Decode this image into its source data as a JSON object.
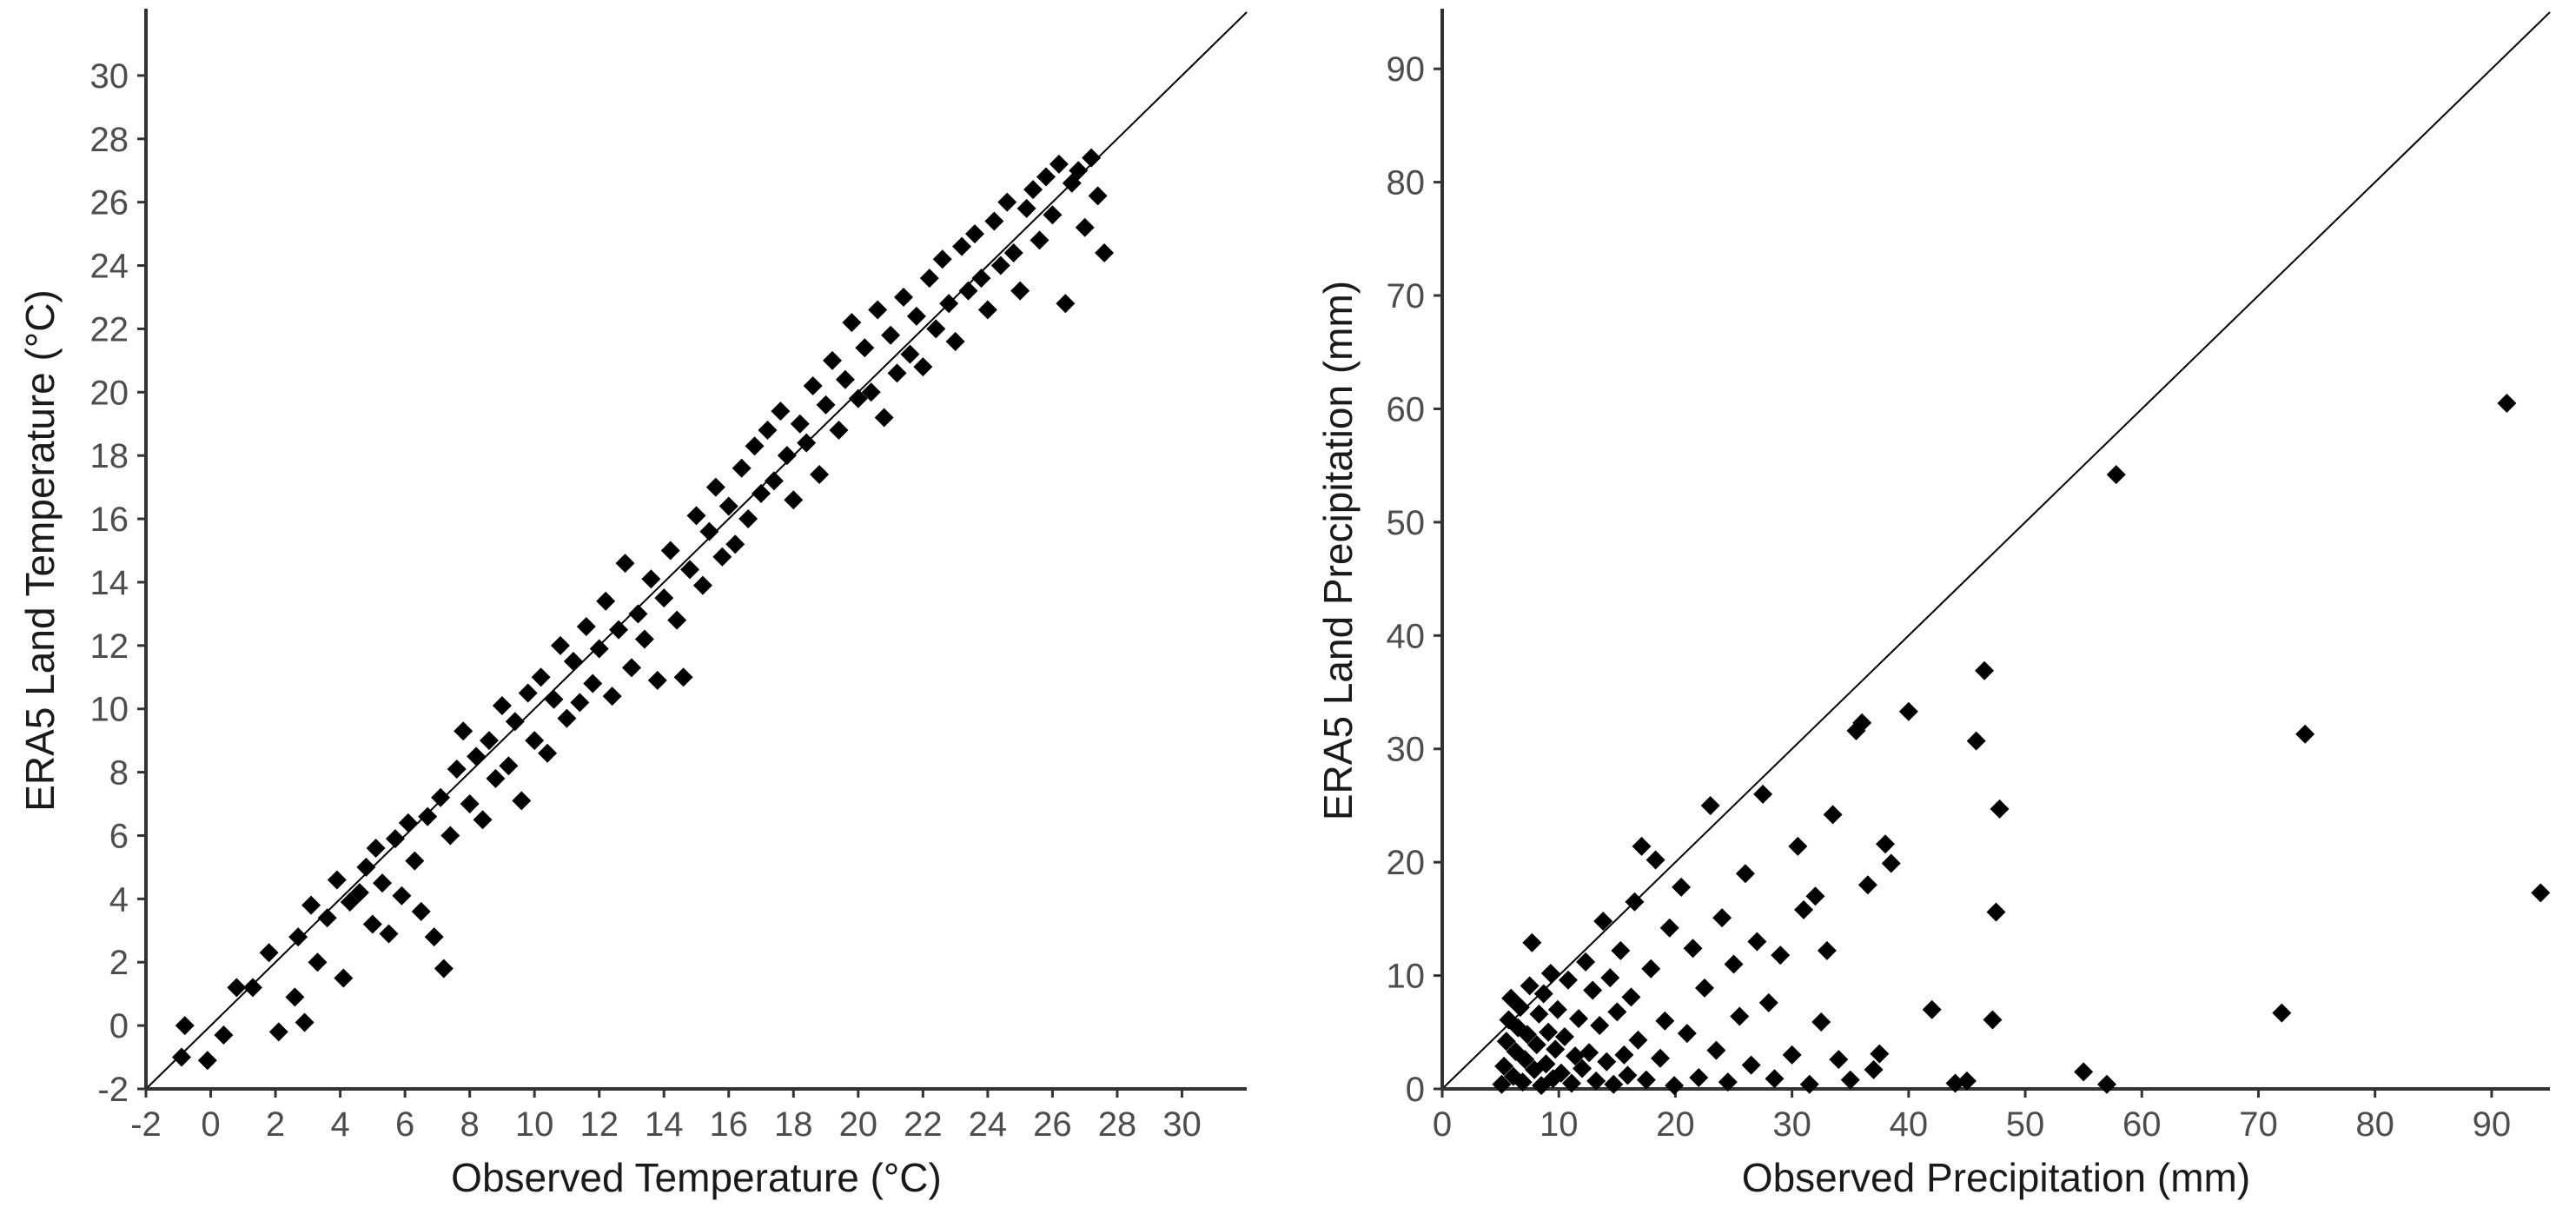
{
  "figure": {
    "colors": {
      "points": "#000000",
      "axis": "#333333",
      "identity_line": "#000000",
      "tick_text": "#4d4d4d",
      "background": "#ffffff"
    }
  },
  "chart_data": [
    {
      "type": "scatter",
      "title": "",
      "xlabel": "Observed Temperature (°C)",
      "ylabel": "ERA5 Land Temperature (°C)",
      "xlim": [
        -2,
        32
      ],
      "ylim": [
        -2,
        32
      ],
      "x_ticks": [
        -2,
        0,
        2,
        4,
        6,
        8,
        10,
        12,
        14,
        16,
        18,
        20,
        22,
        24,
        26,
        28,
        30
      ],
      "y_ticks": [
        -2,
        0,
        2,
        4,
        6,
        8,
        10,
        12,
        14,
        16,
        18,
        20,
        22,
        24,
        26,
        28,
        30
      ],
      "x_tick_labels": [
        "-2",
        "0",
        "2",
        "4",
        "6",
        "8",
        "10",
        "12",
        "14",
        "16",
        "18",
        "20",
        "22",
        "24",
        "26",
        "28",
        "30"
      ],
      "y_tick_labels": [
        "-2",
        "0",
        "2",
        "4",
        "6",
        "8",
        "10",
        "12",
        "14",
        "16",
        "18",
        "20",
        "22",
        "24",
        "26",
        "28",
        "30"
      ],
      "grid": false,
      "reference_line": "1:1",
      "marker": "diamond",
      "points": [
        [
          -0.8,
          0.0
        ],
        [
          -0.9,
          -1.0
        ],
        [
          -0.1,
          -1.1
        ],
        [
          0.4,
          -0.3
        ],
        [
          0.8,
          1.2
        ],
        [
          1.3,
          1.2
        ],
        [
          1.8,
          2.3
        ],
        [
          2.1,
          -0.2
        ],
        [
          2.6,
          0.9
        ],
        [
          2.9,
          0.1
        ],
        [
          2.7,
          2.8
        ],
        [
          3.1,
          3.8
        ],
        [
          3.3,
          2.0
        ],
        [
          3.6,
          3.4
        ],
        [
          3.9,
          4.6
        ],
        [
          4.1,
          1.5
        ],
        [
          4.3,
          3.9
        ],
        [
          4.6,
          4.2
        ],
        [
          4.8,
          5.0
        ],
        [
          5.0,
          3.2
        ],
        [
          5.1,
          5.6
        ],
        [
          5.3,
          4.5
        ],
        [
          5.5,
          2.9
        ],
        [
          5.7,
          5.9
        ],
        [
          5.9,
          4.1
        ],
        [
          6.1,
          6.4
        ],
        [
          6.3,
          5.2
        ],
        [
          6.5,
          3.6
        ],
        [
          6.7,
          6.6
        ],
        [
          6.9,
          2.8
        ],
        [
          7.1,
          7.2
        ],
        [
          7.2,
          1.8
        ],
        [
          7.4,
          6.0
        ],
        [
          7.6,
          8.1
        ],
        [
          7.8,
          9.3
        ],
        [
          8.0,
          7.0
        ],
        [
          8.2,
          8.5
        ],
        [
          8.4,
          6.5
        ],
        [
          8.6,
          9.0
        ],
        [
          8.8,
          7.8
        ],
        [
          9.0,
          10.1
        ],
        [
          9.2,
          8.2
        ],
        [
          9.4,
          9.6
        ],
        [
          9.6,
          7.1
        ],
        [
          9.8,
          10.5
        ],
        [
          10.0,
          9.0
        ],
        [
          10.2,
          11.0
        ],
        [
          10.4,
          8.6
        ],
        [
          10.6,
          10.3
        ],
        [
          10.8,
          12.0
        ],
        [
          11.0,
          9.7
        ],
        [
          11.2,
          11.5
        ],
        [
          11.4,
          10.2
        ],
        [
          11.6,
          12.6
        ],
        [
          11.8,
          10.8
        ],
        [
          12.0,
          11.9
        ],
        [
          12.2,
          13.4
        ],
        [
          12.4,
          10.4
        ],
        [
          12.6,
          12.5
        ],
        [
          12.8,
          14.6
        ],
        [
          13.0,
          11.3
        ],
        [
          13.2,
          13.0
        ],
        [
          13.4,
          12.2
        ],
        [
          13.6,
          14.1
        ],
        [
          13.8,
          10.9
        ],
        [
          14.0,
          13.5
        ],
        [
          14.2,
          15.0
        ],
        [
          14.4,
          12.8
        ],
        [
          14.6,
          11.0
        ],
        [
          14.8,
          14.4
        ],
        [
          15.0,
          16.1
        ],
        [
          15.2,
          13.9
        ],
        [
          15.4,
          15.6
        ],
        [
          15.6,
          17.0
        ],
        [
          15.8,
          14.8
        ],
        [
          16.0,
          16.4
        ],
        [
          16.2,
          15.2
        ],
        [
          16.4,
          17.6
        ],
        [
          16.6,
          16.0
        ],
        [
          16.8,
          18.3
        ],
        [
          17.0,
          16.8
        ],
        [
          17.2,
          18.8
        ],
        [
          17.4,
          17.2
        ],
        [
          17.6,
          19.4
        ],
        [
          17.8,
          18.0
        ],
        [
          18.0,
          16.6
        ],
        [
          18.2,
          19.0
        ],
        [
          18.4,
          18.4
        ],
        [
          18.6,
          20.2
        ],
        [
          18.8,
          17.4
        ],
        [
          19.0,
          19.6
        ],
        [
          19.2,
          21.0
        ],
        [
          19.4,
          18.8
        ],
        [
          19.6,
          20.4
        ],
        [
          19.8,
          22.2
        ],
        [
          20.0,
          19.8
        ],
        [
          20.2,
          21.4
        ],
        [
          20.4,
          20.0
        ],
        [
          20.6,
          22.6
        ],
        [
          20.8,
          19.2
        ],
        [
          21.0,
          21.8
        ],
        [
          21.2,
          20.6
        ],
        [
          21.4,
          23.0
        ],
        [
          21.6,
          21.2
        ],
        [
          21.8,
          22.4
        ],
        [
          22.0,
          20.8
        ],
        [
          22.2,
          23.6
        ],
        [
          22.4,
          22.0
        ],
        [
          22.6,
          24.2
        ],
        [
          22.8,
          22.8
        ],
        [
          23.0,
          21.6
        ],
        [
          23.2,
          24.6
        ],
        [
          23.4,
          23.2
        ],
        [
          23.6,
          25.0
        ],
        [
          23.8,
          23.6
        ],
        [
          24.0,
          22.6
        ],
        [
          24.2,
          25.4
        ],
        [
          24.4,
          24.0
        ],
        [
          24.6,
          26.0
        ],
        [
          24.8,
          24.4
        ],
        [
          25.0,
          23.2
        ],
        [
          25.2,
          25.8
        ],
        [
          25.4,
          26.4
        ],
        [
          25.6,
          24.8
        ],
        [
          25.8,
          26.8
        ],
        [
          26.0,
          25.6
        ],
        [
          26.2,
          27.2
        ],
        [
          26.4,
          22.8
        ],
        [
          26.6,
          26.6
        ],
        [
          26.8,
          27.0
        ],
        [
          27.0,
          25.2
        ],
        [
          27.2,
          27.4
        ],
        [
          27.4,
          26.2
        ],
        [
          27.6,
          24.4
        ]
      ]
    },
    {
      "type": "scatter",
      "title": "",
      "xlabel": "Observed Precipitation (mm)",
      "ylabel": "ERA5 Land Precipitation (mm)",
      "xlim": [
        0,
        95
      ],
      "ylim": [
        0,
        95
      ],
      "x_ticks": [
        0,
        10,
        20,
        30,
        40,
        50,
        60,
        70,
        80,
        90
      ],
      "y_ticks": [
        0,
        10,
        20,
        30,
        40,
        50,
        60,
        70,
        80,
        90
      ],
      "x_tick_labels": [
        "0",
        "10",
        "20",
        "30",
        "40",
        "50",
        "60",
        "70",
        "80",
        "90"
      ],
      "y_tick_labels": [
        "0",
        "10",
        "20",
        "30",
        "40",
        "50",
        "60",
        "70",
        "80",
        "90"
      ],
      "grid": false,
      "reference_line": "1:1",
      "marker": "diamond",
      "points": [
        [
          5.1,
          0.4
        ],
        [
          5.3,
          2.0
        ],
        [
          5.5,
          4.2
        ],
        [
          5.7,
          6.1
        ],
        [
          5.9,
          8.0
        ],
        [
          6.1,
          1.1
        ],
        [
          6.3,
          3.3
        ],
        [
          6.5,
          5.4
        ],
        [
          6.7,
          7.2
        ],
        [
          6.9,
          0.6
        ],
        [
          7.1,
          2.6
        ],
        [
          7.3,
          4.8
        ],
        [
          7.5,
          9.1
        ],
        [
          7.7,
          12.9
        ],
        [
          7.9,
          1.7
        ],
        [
          8.1,
          3.9
        ],
        [
          8.3,
          6.6
        ],
        [
          8.5,
          0.3
        ],
        [
          8.7,
          8.4
        ],
        [
          8.9,
          2.2
        ],
        [
          9.1,
          5.0
        ],
        [
          9.3,
          10.2
        ],
        [
          9.5,
          0.9
        ],
        [
          9.7,
          3.5
        ],
        [
          9.9,
          7.0
        ],
        [
          10.2,
          1.4
        ],
        [
          10.5,
          4.6
        ],
        [
          10.8,
          9.6
        ],
        [
          11.1,
          0.5
        ],
        [
          11.4,
          2.9
        ],
        [
          11.7,
          6.2
        ],
        [
          12.0,
          1.8
        ],
        [
          12.3,
          11.2
        ],
        [
          12.6,
          3.2
        ],
        [
          12.9,
          8.7
        ],
        [
          13.2,
          0.7
        ],
        [
          13.5,
          5.6
        ],
        [
          13.8,
          14.8
        ],
        [
          14.1,
          2.4
        ],
        [
          14.4,
          9.8
        ],
        [
          14.7,
          0.4
        ],
        [
          15.0,
          6.8
        ],
        [
          15.3,
          12.2
        ],
        [
          15.6,
          3.0
        ],
        [
          15.9,
          1.2
        ],
        [
          16.2,
          8.1
        ],
        [
          16.5,
          16.5
        ],
        [
          16.8,
          4.3
        ],
        [
          17.1,
          21.4
        ],
        [
          17.5,
          0.8
        ],
        [
          17.9,
          10.6
        ],
        [
          18.3,
          20.2
        ],
        [
          18.7,
          2.7
        ],
        [
          19.1,
          6.0
        ],
        [
          19.5,
          14.2
        ],
        [
          19.9,
          0.3
        ],
        [
          20.5,
          17.8
        ],
        [
          21.0,
          4.9
        ],
        [
          21.5,
          12.4
        ],
        [
          22.0,
          1.0
        ],
        [
          22.5,
          8.9
        ],
        [
          23.0,
          25.0
        ],
        [
          23.5,
          3.4
        ],
        [
          24.0,
          15.1
        ],
        [
          24.5,
          0.6
        ],
        [
          25.0,
          11.0
        ],
        [
          25.5,
          6.4
        ],
        [
          26.0,
          19.0
        ],
        [
          26.5,
          2.1
        ],
        [
          27.0,
          13.0
        ],
        [
          27.5,
          26.0
        ],
        [
          28.0,
          7.6
        ],
        [
          28.5,
          0.9
        ],
        [
          29.0,
          11.8
        ],
        [
          30.0,
          3.0
        ],
        [
          30.5,
          21.4
        ],
        [
          31.0,
          15.8
        ],
        [
          31.5,
          0.4
        ],
        [
          32.0,
          17.0
        ],
        [
          32.5,
          5.9
        ],
        [
          33.0,
          12.2
        ],
        [
          33.5,
          24.2
        ],
        [
          34.0,
          2.6
        ],
        [
          35.0,
          0.8
        ],
        [
          35.5,
          31.6
        ],
        [
          36.0,
          32.3
        ],
        [
          36.5,
          18.0
        ],
        [
          37.0,
          1.7
        ],
        [
          37.5,
          3.1
        ],
        [
          38.0,
          21.6
        ],
        [
          38.5,
          19.9
        ],
        [
          40.0,
          33.3
        ],
        [
          42.0,
          7.0
        ],
        [
          44.0,
          0.5
        ],
        [
          45.0,
          0.7
        ],
        [
          45.8,
          30.7
        ],
        [
          46.5,
          36.9
        ],
        [
          47.2,
          6.1
        ],
        [
          47.5,
          15.6
        ],
        [
          47.8,
          24.7
        ],
        [
          55.0,
          1.5
        ],
        [
          57.0,
          0.4
        ],
        [
          57.8,
          54.2
        ],
        [
          72.0,
          6.7
        ],
        [
          74.0,
          31.3
        ],
        [
          91.3,
          60.5
        ],
        [
          94.2,
          17.3
        ]
      ]
    }
  ]
}
